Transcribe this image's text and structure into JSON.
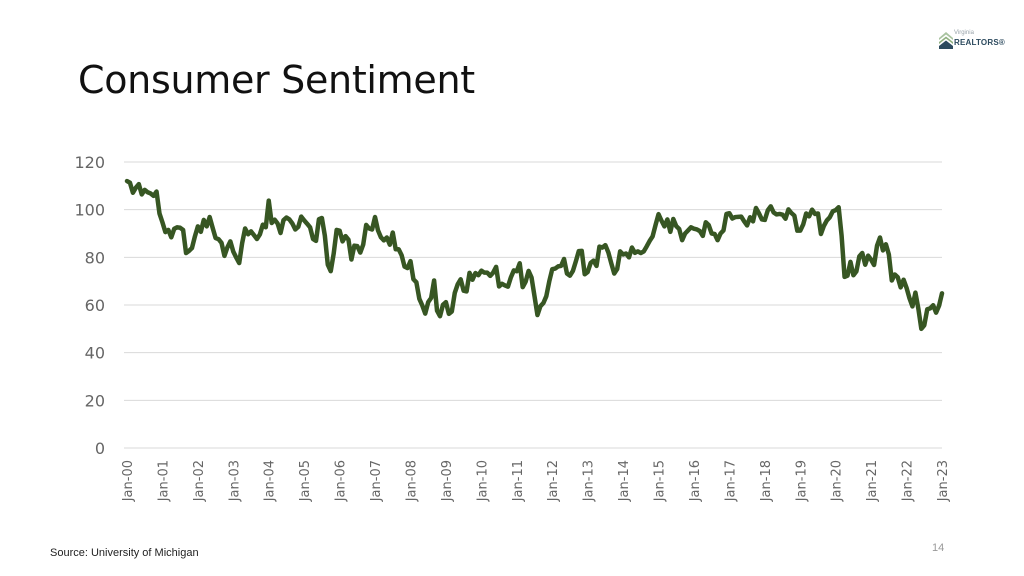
{
  "slide": {
    "title": "Consumer Sentiment",
    "source": "Source: University of Michigan",
    "page_number": "14",
    "logo": {
      "line1": "Virginia",
      "line2": "REALTORS®"
    }
  },
  "colors": {
    "line": "#375623",
    "grid": "#d9d9d9",
    "tick": "#666666",
    "logo_roof1": "#a9c3a0",
    "logo_roof2": "#2c4a5e"
  },
  "chart_data": {
    "type": "line",
    "title": "Consumer Sentiment",
    "xlabel": "",
    "ylabel": "",
    "ylim": [
      0,
      120
    ],
    "yticks": [
      0,
      20,
      40,
      60,
      80,
      100,
      120
    ],
    "grid": true,
    "legend": "none",
    "x_start": "Jan-00",
    "x_end": "Jan-23",
    "frequency": "monthly",
    "x_tick_labels": [
      "Jan-00",
      "Jan-01",
      "Jan-02",
      "Jan-03",
      "Jan-04",
      "Jan-05",
      "Jan-06",
      "Jan-07",
      "Jan-08",
      "Jan-09",
      "Jan-10",
      "Jan-11",
      "Jan-12",
      "Jan-13",
      "Jan-14",
      "Jan-15",
      "Jan-16",
      "Jan-17",
      "Jan-18",
      "Jan-19",
      "Jan-20",
      "Jan-21",
      "Jan-22",
      "Jan-23"
    ],
    "series": [
      {
        "name": "Consumer Sentiment",
        "values": [
          112.0,
          111.3,
          107.1,
          109.2,
          110.7,
          106.4,
          108.3,
          107.3,
          106.8,
          105.8,
          107.6,
          98.4,
          94.7,
          90.6,
          91.5,
          88.4,
          92.0,
          92.6,
          92.4,
          91.5,
          81.8,
          82.7,
          83.9,
          88.8,
          93.0,
          90.7,
          95.7,
          93.0,
          96.9,
          92.4,
          88.1,
          87.6,
          86.1,
          80.6,
          84.2,
          86.7,
          82.4,
          79.9,
          77.6,
          86.0,
          92.1,
          89.7,
          90.9,
          89.3,
          87.7,
          89.6,
          93.7,
          92.6,
          103.8,
          94.4,
          95.8,
          94.2,
          90.2,
          95.6,
          96.7,
          95.9,
          94.2,
          91.7,
          92.8,
          97.1,
          95.5,
          94.1,
          92.6,
          87.7,
          86.9,
          96.0,
          96.5,
          89.1,
          76.9,
          74.2,
          81.6,
          91.5,
          91.2,
          86.7,
          88.9,
          87.4,
          79.1,
          84.9,
          84.7,
          82.0,
          85.4,
          93.6,
          92.1,
          91.7,
          96.9,
          91.3,
          88.4,
          87.1,
          88.3,
          85.3,
          90.4,
          83.4,
          83.4,
          80.9,
          76.1,
          75.5,
          78.4,
          70.8,
          69.5,
          62.6,
          59.8,
          56.4,
          61.2,
          63.0,
          70.3,
          57.6,
          55.3,
          60.1,
          61.2,
          56.3,
          57.3,
          65.1,
          68.7,
          70.8,
          66.0,
          65.7,
          73.5,
          70.6,
          73.4,
          72.5,
          74.4,
          73.6,
          73.6,
          72.2,
          73.6,
          76.0,
          67.8,
          68.9,
          68.2,
          67.7,
          71.6,
          74.5,
          74.2,
          77.5,
          67.5,
          69.8,
          74.3,
          71.5,
          63.7,
          55.8,
          59.5,
          60.8,
          63.7,
          69.9,
          75.0,
          75.3,
          76.2,
          76.4,
          79.3,
          73.2,
          72.3,
          74.3,
          78.3,
          82.6,
          82.7,
          72.9,
          73.8,
          77.6,
          78.6,
          76.4,
          84.5,
          84.1,
          85.1,
          82.1,
          77.5,
          73.2,
          75.1,
          82.5,
          81.2,
          81.6,
          80.0,
          84.1,
          81.9,
          82.5,
          81.8,
          82.5,
          84.6,
          86.9,
          88.8,
          93.6,
          98.1,
          95.4,
          93.0,
          95.9,
          90.7,
          96.1,
          93.1,
          91.9,
          87.2,
          90.0,
          91.3,
          92.6,
          92.0,
          91.7,
          91.0,
          89.0,
          94.7,
          93.5,
          90.0,
          89.8,
          87.2,
          90.0,
          91.3,
          98.2,
          98.5,
          96.3,
          96.9,
          97.0,
          97.1,
          95.1,
          93.4,
          96.8,
          95.1,
          100.7,
          98.5,
          95.9,
          95.7,
          99.7,
          101.4,
          98.8,
          98.0,
          98.2,
          97.9,
          96.2,
          100.1,
          98.6,
          97.5,
          91.2,
          91.2,
          93.8,
          98.4,
          97.2,
          100.0,
          98.2,
          98.4,
          89.8,
          93.2,
          95.5,
          96.8,
          99.3,
          99.8,
          101.0,
          89.1,
          71.8,
          72.3,
          78.1,
          72.5,
          74.1,
          80.4,
          81.8,
          76.9,
          80.7,
          79.0,
          76.8,
          84.9,
          88.3,
          82.9,
          85.5,
          81.2,
          70.3,
          72.8,
          71.7,
          67.4,
          70.6,
          67.2,
          62.8,
          59.4,
          65.2,
          58.4,
          50.0,
          51.5,
          58.2,
          58.6,
          59.9,
          56.8,
          59.7,
          64.9
        ]
      }
    ]
  }
}
